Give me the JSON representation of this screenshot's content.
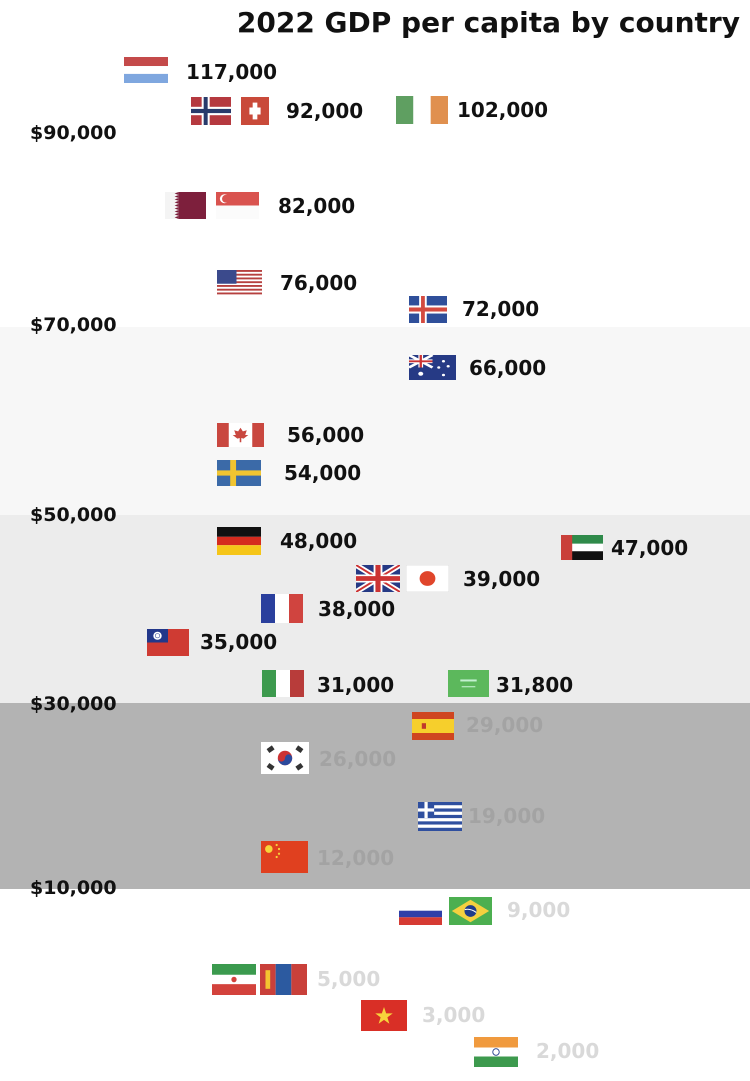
{
  "chart_data": {
    "type": "scatter",
    "title": "2022 GDP per capita by country",
    "y_ticks": [
      "$90,000",
      "$70,000",
      "$50,000",
      "$30,000",
      "$10,000"
    ],
    "bands": [
      {
        "from": 70000,
        "to": 50000,
        "color": "#f7f7f7"
      },
      {
        "from": 50000,
        "to": 30000,
        "color": "#ececec"
      },
      {
        "from": 30000,
        "to": 10000,
        "color": "#b3b3b3"
      }
    ],
    "points": [
      {
        "flags": [
          "luxembourg"
        ],
        "label": "117,000",
        "value": 117000
      },
      {
        "flags": [
          "norway",
          "switzerland"
        ],
        "label": "92,000",
        "value": 92000
      },
      {
        "flags": [
          "ireland"
        ],
        "label": "102,000",
        "value": 102000
      },
      {
        "flags": [
          "qatar",
          "singapore"
        ],
        "label": "82,000",
        "value": 82000
      },
      {
        "flags": [
          "usa"
        ],
        "label": "76,000",
        "value": 76000
      },
      {
        "flags": [
          "iceland"
        ],
        "label": "72,000",
        "value": 72000
      },
      {
        "flags": [
          "australia"
        ],
        "label": "66,000",
        "value": 66000
      },
      {
        "flags": [
          "canada"
        ],
        "label": "56,000",
        "value": 56000
      },
      {
        "flags": [
          "sweden"
        ],
        "label": "54,000",
        "value": 54000
      },
      {
        "flags": [
          "germany"
        ],
        "label": "48,000",
        "value": 48000
      },
      {
        "flags": [
          "uae"
        ],
        "label": "47,000",
        "value": 47000
      },
      {
        "flags": [
          "uk",
          "japan"
        ],
        "label": "39,000",
        "value": 39000
      },
      {
        "flags": [
          "france"
        ],
        "label": "38,000",
        "value": 38000
      },
      {
        "flags": [
          "taiwan"
        ],
        "label": "35,000",
        "value": 35000
      },
      {
        "flags": [
          "italy"
        ],
        "label": "31,000",
        "value": 31000
      },
      {
        "flags": [
          "saudi-arabia"
        ],
        "label": "31,800",
        "value": 31800
      },
      {
        "flags": [
          "spain"
        ],
        "label": "29,000",
        "value": 29000
      },
      {
        "flags": [
          "south-korea"
        ],
        "label": "26,000",
        "value": 26000
      },
      {
        "flags": [
          "greece"
        ],
        "label": "19,000",
        "value": 19000
      },
      {
        "flags": [
          "china"
        ],
        "label": "12,000",
        "value": 12000
      },
      {
        "flags": [
          "russia",
          "brazil"
        ],
        "label": "9,000",
        "value": 9000
      },
      {
        "flags": [
          "iran",
          "mongolia"
        ],
        "label": "5,000",
        "value": 5000
      },
      {
        "flags": [
          "vietnam"
        ],
        "label": "3,000",
        "value": 3000
      },
      {
        "flags": [
          "india"
        ],
        "label": "2,000",
        "value": 2000
      }
    ],
    "label_colors": {
      "dark": "#111111",
      "mid": "#a3a3a3",
      "light": "#d9d9d9"
    }
  }
}
